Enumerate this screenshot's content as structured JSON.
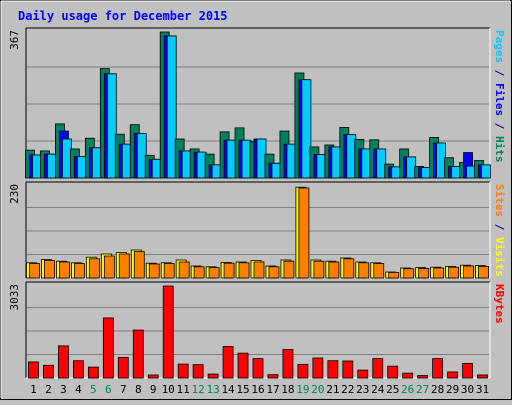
{
  "chart_data": {
    "type": "bar",
    "title": "Daily usage for December 2015",
    "categories": [
      "1",
      "2",
      "3",
      "4",
      "5",
      "6",
      "7",
      "8",
      "9",
      "10",
      "11",
      "12",
      "13",
      "14",
      "15",
      "16",
      "17",
      "18",
      "19",
      "20",
      "21",
      "22",
      "23",
      "24",
      "25",
      "26",
      "27",
      "28",
      "29",
      "30",
      "31"
    ],
    "weekend_days": [
      "5",
      "6",
      "12",
      "13",
      "19",
      "20",
      "26",
      "27"
    ],
    "panels": [
      {
        "ymax_label": "367",
        "ymax": 367,
        "axis_labels": [
          {
            "text": "Pages",
            "color": "#00ccff"
          },
          {
            "text": " / ",
            "color": "#000080"
          },
          {
            "text": "Files",
            "color": "#0000ff"
          },
          {
            "text": " / ",
            "color": "#000080"
          },
          {
            "text": "Hits",
            "color": "#00805c"
          }
        ],
        "series": [
          {
            "key": "hits",
            "color": "#00805c",
            "values": [
              70,
              68,
              136,
              73,
              100,
              275,
              110,
              134,
              57,
              367,
              98,
              73,
              60,
              116,
              126,
              91,
              60,
              118,
              264,
              78,
              83,
              127,
              97,
              96,
              35,
              73,
              29,
              102,
              51,
              39,
              44
            ]
          },
          {
            "key": "files",
            "color": "#0000ff",
            "values": [
              58,
              60,
              118,
              54,
              76,
              262,
              85,
              112,
              47,
              357,
              68,
              65,
              33,
              95,
              95,
              98,
              37,
              85,
              247,
              59,
              78,
              109,
              73,
              73,
              28,
              53,
              26,
              88,
              29,
              64,
              33
            ]
          },
          {
            "key": "pages",
            "color": "#00ccff",
            "values": [
              58,
              60,
              98,
              54,
              76,
              262,
              85,
              112,
              47,
              357,
              68,
              65,
              33,
              95,
              95,
              98,
              37,
              85,
              247,
              59,
              78,
              109,
              73,
              73,
              28,
              53,
              26,
              88,
              29,
              30,
              33
            ]
          }
        ]
      },
      {
        "ymax_label": "230",
        "ymax": 230,
        "axis_labels": [
          {
            "text": "Sites",
            "color": "#ff8000"
          },
          {
            "text": " / ",
            "color": "#000080"
          },
          {
            "text": "Visits",
            "color": "#ffff00"
          }
        ],
        "series": [
          {
            "key": "visits",
            "color": "#ffff00",
            "values": [
              38,
              46,
              42,
              38,
              52,
              60,
              64,
              70,
              37,
              38,
              45,
              30,
              28,
              39,
              40,
              44,
              30,
              45,
              227,
              45,
              42,
              50,
              40,
              38,
              15,
              25,
              26,
              27,
              29,
              32,
              31
            ]
          },
          {
            "key": "sites",
            "color": "#ff8000",
            "values": [
              36,
              44,
              40,
              36,
              48,
              55,
              60,
              66,
              35,
              36,
              40,
              28,
              26,
              37,
              38,
              40,
              28,
              42,
              225,
              42,
              40,
              48,
              38,
              36,
              14,
              23,
              24,
              25,
              27,
              30,
              29
            ]
          }
        ]
      },
      {
        "ymax_label": "3033",
        "ymax": 3033,
        "axis_labels": [
          {
            "text": "KBytes",
            "color": "#ff0000"
          }
        ],
        "series": [
          {
            "key": "kbytes",
            "color": "#ff0000",
            "values": [
              530,
              420,
              1060,
              570,
              360,
              1980,
              680,
              1580,
              100,
              3033,
              460,
              440,
              130,
              1040,
              820,
              640,
              110,
              940,
              450,
              660,
              570,
              560,
              260,
              640,
              390,
              160,
              80,
              640,
              200,
              480,
              100
            ]
          }
        ]
      }
    ],
    "legend_placement": "right-vertical",
    "grid": true
  }
}
